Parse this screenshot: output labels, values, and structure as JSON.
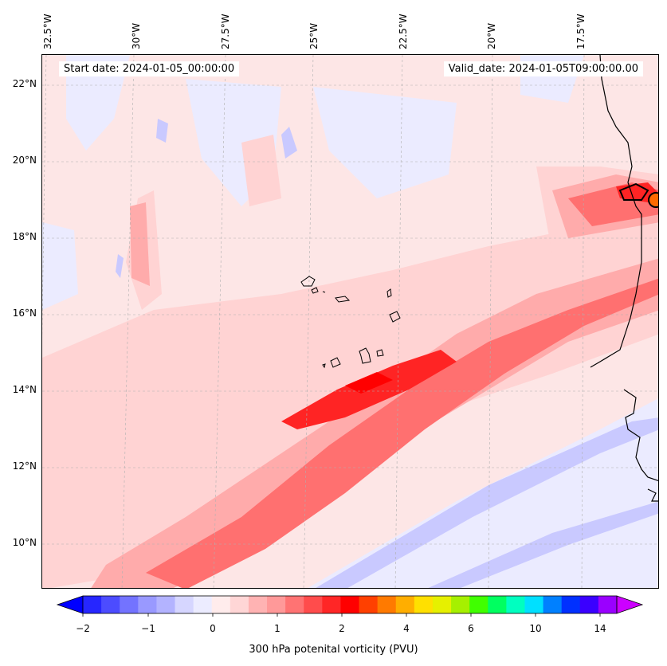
{
  "map": {
    "start_date": "Start date: 2024-01-05_00:00:00",
    "valid_date": "Valid_date: 2024-01-05T09:00:00.00",
    "lon_labels": [
      "32.5°W",
      "30°W",
      "27.5°W",
      "25°W",
      "22.5°W",
      "20°W",
      "17.5°W"
    ],
    "lat_labels": [
      "22°N",
      "20°N",
      "18°N",
      "16°N",
      "14°N",
      "12°N",
      "10°N"
    ],
    "colorbar": {
      "title": "300 hPa potenital vorticity (PVU)",
      "ticks": [
        "−2",
        "−1",
        "0",
        "1",
        "2",
        "4",
        "6",
        "10",
        "14"
      ],
      "colors": [
        "#0000ff",
        "#2626ff",
        "#4c4cff",
        "#7373ff",
        "#9999ff",
        "#b3b3ff",
        "#d6d6ff",
        "#ececff",
        "#ffecec",
        "#ffd6d6",
        "#ffb3b3",
        "#ff9999",
        "#ff7373",
        "#ff4c4c",
        "#ff2626",
        "#ff0000",
        "#ff4000",
        "#ff7a00",
        "#ffae00",
        "#ffe000",
        "#e6f000",
        "#a6f000",
        "#40ff00",
        "#00ff60",
        "#00ffc0",
        "#00e0ff",
        "#0080ff",
        "#0030ff",
        "#3a00ff",
        "#9a00ff",
        "#cc00ff"
      ]
    }
  }
}
